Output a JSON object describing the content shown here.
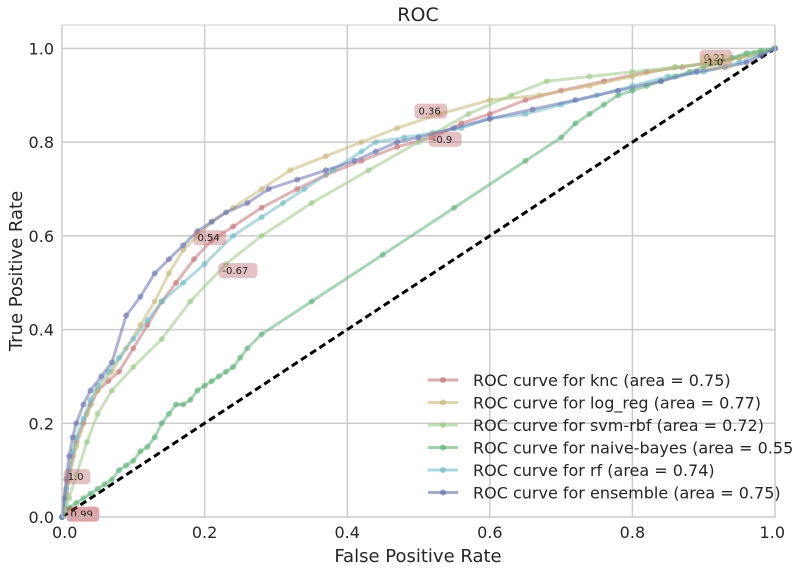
{
  "chart_data": {
    "type": "line",
    "title": "ROC",
    "xlabel": "False Positive Rate",
    "ylabel": "True Positive Rate",
    "xlim": [
      0.0,
      1.0
    ],
    "ylim": [
      0.0,
      1.05
    ],
    "x_ticks": [
      "0.0",
      "0.2",
      "0.4",
      "0.6",
      "0.8",
      "1.0"
    ],
    "y_ticks": [
      "0.0",
      "0.2",
      "0.4",
      "0.6",
      "0.8",
      "1.0"
    ],
    "grid": true,
    "legend_position": "lower-right",
    "diagonal": {
      "x": [
        0,
        1
      ],
      "y": [
        0,
        1
      ],
      "style": "dashed",
      "color": "#000000"
    },
    "series": [
      {
        "name": "ROC curve for knc (area = 0.75)",
        "color": "#c4767a",
        "x": [
          0,
          0.003,
          0.006,
          0.01,
          0.015,
          0.02,
          0.03,
          0.04,
          0.05,
          0.065,
          0.08,
          0.1,
          0.12,
          0.14,
          0.16,
          0.185,
          0.21,
          0.24,
          0.28,
          0.33,
          0.37,
          0.42,
          0.47,
          0.52,
          0.56,
          0.6,
          0.65,
          0.7,
          0.76,
          0.82,
          0.87,
          0.91,
          0.95,
          0.98,
          1.0
        ],
        "y": [
          0,
          0.02,
          0.05,
          0.09,
          0.13,
          0.16,
          0.2,
          0.24,
          0.27,
          0.29,
          0.31,
          0.36,
          0.41,
          0.46,
          0.5,
          0.55,
          0.59,
          0.62,
          0.66,
          0.7,
          0.73,
          0.76,
          0.79,
          0.81,
          0.84,
          0.86,
          0.89,
          0.91,
          0.93,
          0.95,
          0.96,
          0.97,
          0.98,
          0.99,
          1.0
        ]
      },
      {
        "name": "ROC curve for log_reg (area = 0.77)",
        "color": "#c9b97a",
        "x": [
          0,
          0.005,
          0.01,
          0.02,
          0.035,
          0.05,
          0.07,
          0.09,
          0.11,
          0.13,
          0.15,
          0.17,
          0.19,
          0.21,
          0.24,
          0.28,
          0.32,
          0.37,
          0.42,
          0.47,
          0.53,
          0.6,
          0.67,
          0.74,
          0.8,
          0.86,
          0.91,
          0.95,
          0.98,
          1.0
        ],
        "y": [
          0,
          0.04,
          0.08,
          0.15,
          0.22,
          0.27,
          0.31,
          0.36,
          0.41,
          0.46,
          0.52,
          0.57,
          0.6,
          0.63,
          0.66,
          0.7,
          0.74,
          0.77,
          0.8,
          0.83,
          0.86,
          0.89,
          0.9,
          0.92,
          0.94,
          0.96,
          0.97,
          0.98,
          0.99,
          1.0
        ]
      },
      {
        "name": "ROC curve for svm-rbf (area = 0.72)",
        "color": "#9cc98a",
        "x": [
          0,
          0.01,
          0.02,
          0.035,
          0.05,
          0.07,
          0.1,
          0.14,
          0.18,
          0.23,
          0.28,
          0.35,
          0.43,
          0.5,
          0.57,
          0.63,
          0.68,
          0.74,
          0.8,
          0.86,
          0.92,
          0.97,
          1.0
        ],
        "y": [
          0,
          0.04,
          0.09,
          0.16,
          0.22,
          0.27,
          0.32,
          0.38,
          0.46,
          0.54,
          0.6,
          0.67,
          0.74,
          0.8,
          0.86,
          0.9,
          0.93,
          0.94,
          0.95,
          0.96,
          0.97,
          0.99,
          1.0
        ]
      },
      {
        "name": "ROC curve for naive-bayes (area = 0.55)",
        "color": "#5fb37a",
        "x": [
          0,
          0.01,
          0.02,
          0.03,
          0.04,
          0.05,
          0.06,
          0.07,
          0.08,
          0.09,
          0.1,
          0.11,
          0.12,
          0.13,
          0.14,
          0.15,
          0.16,
          0.17,
          0.18,
          0.19,
          0.2,
          0.21,
          0.22,
          0.23,
          0.24,
          0.25,
          0.26,
          0.28,
          0.35,
          0.45,
          0.55,
          0.65,
          0.7,
          0.72,
          0.74,
          0.76,
          0.78,
          0.8,
          0.82,
          0.84,
          0.86,
          0.88,
          0.9,
          0.92,
          0.94,
          0.96,
          0.98,
          1.0
        ],
        "y": [
          0,
          0.02,
          0.03,
          0.04,
          0.05,
          0.06,
          0.07,
          0.08,
          0.1,
          0.11,
          0.12,
          0.14,
          0.15,
          0.17,
          0.2,
          0.22,
          0.24,
          0.24,
          0.25,
          0.27,
          0.28,
          0.29,
          0.3,
          0.31,
          0.32,
          0.34,
          0.36,
          0.39,
          0.46,
          0.56,
          0.66,
          0.76,
          0.81,
          0.84,
          0.86,
          0.88,
          0.9,
          0.91,
          0.92,
          0.93,
          0.94,
          0.95,
          0.96,
          0.97,
          0.98,
          0.99,
          0.995,
          1.0
        ]
      },
      {
        "name": "ROC curve for rf (area = 0.74)",
        "color": "#74bcc4",
        "x": [
          0,
          0.003,
          0.006,
          0.01,
          0.015,
          0.02,
          0.03,
          0.04,
          0.05,
          0.065,
          0.08,
          0.1,
          0.12,
          0.14,
          0.17,
          0.2,
          0.24,
          0.28,
          0.31,
          0.34,
          0.38,
          0.42,
          0.44,
          0.48,
          0.52,
          0.56,
          0.6,
          0.65,
          0.7,
          0.75,
          0.8,
          0.85,
          0.9,
          0.95,
          1.0
        ],
        "y": [
          0,
          0.03,
          0.06,
          0.1,
          0.14,
          0.17,
          0.21,
          0.25,
          0.28,
          0.31,
          0.34,
          0.38,
          0.42,
          0.46,
          0.5,
          0.54,
          0.6,
          0.64,
          0.67,
          0.7,
          0.74,
          0.78,
          0.8,
          0.81,
          0.82,
          0.83,
          0.85,
          0.86,
          0.88,
          0.9,
          0.92,
          0.94,
          0.95,
          0.97,
          1.0
        ]
      },
      {
        "name": "ROC curve for ensemble (area = 0.75)",
        "color": "#6b74b3",
        "x": [
          0,
          0.003,
          0.006,
          0.01,
          0.015,
          0.02,
          0.03,
          0.04,
          0.055,
          0.07,
          0.09,
          0.11,
          0.13,
          0.15,
          0.17,
          0.19,
          0.21,
          0.23,
          0.26,
          0.29,
          0.33,
          0.37,
          0.41,
          0.44,
          0.47,
          0.5,
          0.55,
          0.6,
          0.66,
          0.72,
          0.78,
          0.84,
          0.89,
          0.93,
          0.96,
          0.98,
          1.0
        ],
        "y": [
          0,
          0.04,
          0.08,
          0.13,
          0.17,
          0.2,
          0.24,
          0.27,
          0.3,
          0.33,
          0.43,
          0.47,
          0.52,
          0.55,
          0.58,
          0.61,
          0.63,
          0.65,
          0.67,
          0.7,
          0.72,
          0.74,
          0.76,
          0.78,
          0.8,
          0.81,
          0.83,
          0.85,
          0.87,
          0.89,
          0.91,
          0.93,
          0.95,
          0.96,
          0.97,
          0.985,
          1.0
        ]
      }
    ],
    "annotations": [
      {
        "text": "0.21",
        "x": 0.9,
        "y": 0.98,
        "color": "#c4767a"
      },
      {
        "text": "-1.0",
        "x": 0.9,
        "y": 0.97,
        "color": "#c9b97a"
      },
      {
        "text": "0.36",
        "x": 0.5,
        "y": 0.865,
        "color": "#c4767a"
      },
      {
        "text": "-0.9",
        "x": 0.52,
        "y": 0.805,
        "color": "#c4767a"
      },
      {
        "text": "0.54",
        "x": 0.19,
        "y": 0.595,
        "color": "#c4767a"
      },
      {
        "text": "-0.67",
        "x": 0.225,
        "y": 0.525,
        "color": "#c4767a"
      },
      {
        "text": "1.0",
        "x": 0.008,
        "y": 0.085,
        "color": "#c4767a"
      },
      {
        "text": "0.99",
        "x": 0.012,
        "y": 0.005,
        "color": "#b3363a"
      }
    ]
  }
}
